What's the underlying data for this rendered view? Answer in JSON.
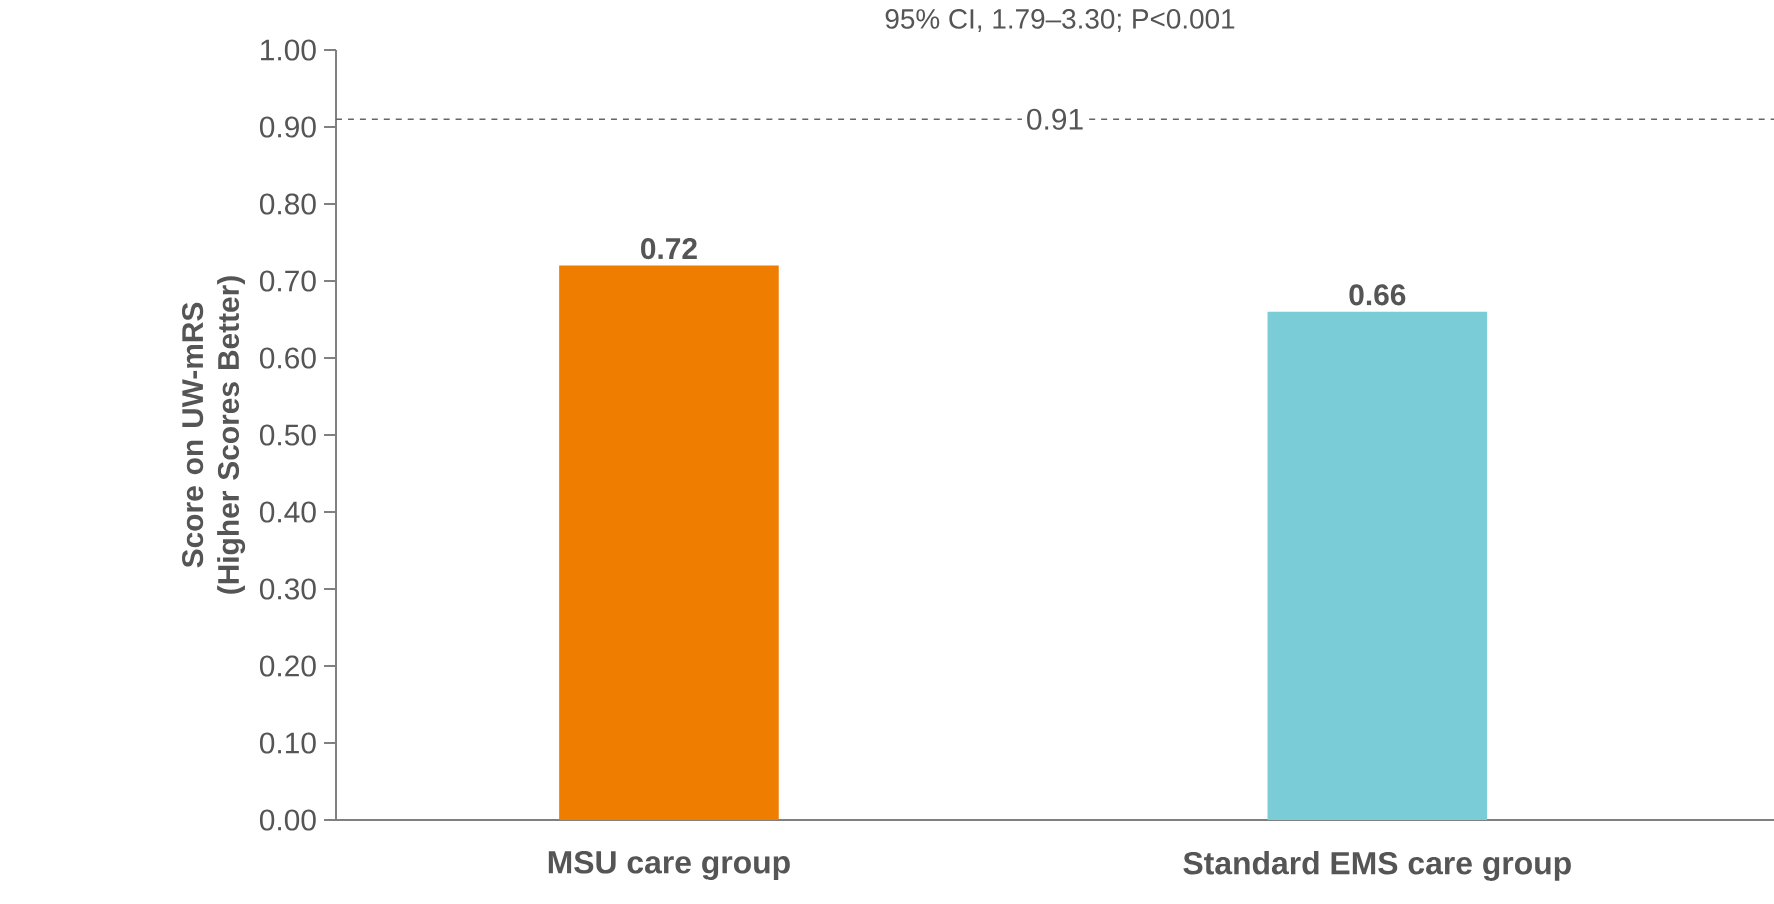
{
  "chart_data": {
    "type": "bar",
    "ylabel": "Score on UW-mRS (Higher Scores Better)",
    "categories": [
      "MSU care group",
      "Standard EMS care group"
    ],
    "values": [
      0.72,
      0.66
    ],
    "colors": [
      "#ef7d00",
      "#7accd6"
    ],
    "ylim": [
      0,
      1
    ],
    "yticks": [
      {
        "value": 0,
        "label": "0.00"
      },
      {
        "value": 0.1,
        "label": "0.10"
      },
      {
        "value": 0.2,
        "label": "0.20"
      },
      {
        "value": 0.3,
        "label": "0.30"
      },
      {
        "value": 0.4,
        "label": "0.40"
      },
      {
        "value": 0.5,
        "label": "0.50"
      },
      {
        "value": 0.6,
        "label": "0.60"
      },
      {
        "value": 0.7,
        "label": "0.70"
      },
      {
        "value": 0.8,
        "label": "0.80"
      },
      {
        "value": 0.9,
        "label": "0.90"
      },
      {
        "value": 1,
        "label": "1.00"
      }
    ],
    "ref_lines": [
      {
        "axis": "y",
        "value": 0.91,
        "label": "0.91",
        "line_style": "dashed"
      }
    ],
    "data_labels": true,
    "annotations": [
      "95% CI, 1.79–3.30; P<0.001"
    ]
  }
}
